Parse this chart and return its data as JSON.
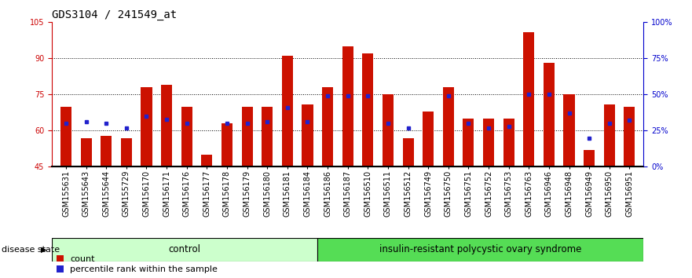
{
  "title": "GDS3104 / 241549_at",
  "categories": [
    "GSM155631",
    "GSM155643",
    "GSM155644",
    "GSM155729",
    "GSM156170",
    "GSM156171",
    "GSM156176",
    "GSM156177",
    "GSM156178",
    "GSM156179",
    "GSM156180",
    "GSM156181",
    "GSM156184",
    "GSM156186",
    "GSM156187",
    "GSM156510",
    "GSM156511",
    "GSM156512",
    "GSM156749",
    "GSM156750",
    "GSM156751",
    "GSM156752",
    "GSM156753",
    "GSM156763",
    "GSM156946",
    "GSM156948",
    "GSM156949",
    "GSM156950",
    "GSM156951"
  ],
  "bar_values": [
    70,
    57,
    58,
    57,
    78,
    79,
    70,
    50,
    63,
    70,
    70,
    91,
    71,
    78,
    95,
    92,
    75,
    57,
    68,
    78,
    65,
    65,
    65,
    101,
    88,
    75,
    52,
    71,
    70
  ],
  "dot_pct": [
    30,
    31,
    30,
    27,
    35,
    33,
    30,
    null,
    30,
    30,
    31,
    41,
    31,
    49,
    49,
    49,
    30,
    27,
    null,
    49,
    30,
    27,
    28,
    50,
    50,
    37,
    20,
    30,
    32
  ],
  "group_labels": [
    "control",
    "insulin-resistant polycystic ovary syndrome"
  ],
  "group_control_count": 13,
  "ylim_left": [
    45,
    105
  ],
  "ylim_right": [
    0,
    100
  ],
  "yticks_left": [
    45,
    60,
    75,
    90,
    105
  ],
  "yticks_right": [
    0,
    25,
    50,
    75,
    100
  ],
  "ytick_labels_right": [
    "0%",
    "25%",
    "50%",
    "75%",
    "100%"
  ],
  "bar_color": "#cc1100",
  "dot_color": "#2222cc",
  "bar_width": 0.55,
  "title_fontsize": 10,
  "tick_fontsize": 7,
  "label_fontsize": 8.5,
  "legend_fontsize": 8,
  "group_box_color_control": "#ccffcc",
  "group_box_color_disease": "#55dd55",
  "background_color": "#ffffff",
  "left_axis_color": "#cc0000",
  "right_axis_color": "#0000cc"
}
